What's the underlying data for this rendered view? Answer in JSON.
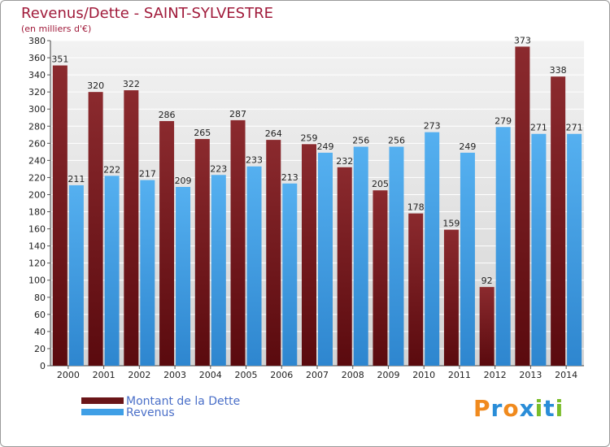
{
  "chart_data": {
    "type": "bar",
    "title": "Revenus/Dette - SAINT-SYLVESTRE",
    "subtitle": "(en milliers d'€)",
    "categories": [
      "2000",
      "2001",
      "2002",
      "2003",
      "2004",
      "2005",
      "2006",
      "2007",
      "2008",
      "2009",
      "2010",
      "2011",
      "2012",
      "2013",
      "2014"
    ],
    "series": [
      {
        "name": "Montant de la Dette",
        "values": [
          351,
          320,
          322,
          286,
          265,
          287,
          264,
          259,
          232,
          205,
          178,
          159,
          92,
          373,
          338
        ],
        "color": "#7a1e22"
      },
      {
        "name": "Revenus",
        "values": [
          211,
          222,
          217,
          209,
          223,
          233,
          213,
          249,
          256,
          256,
          273,
          249,
          279,
          271,
          271
        ],
        "color": "#3f9fe6"
      }
    ],
    "ylim": [
      0,
      380
    ],
    "ytick_step": 20,
    "grid": true,
    "legend": "bottom-left"
  },
  "logo": {
    "letters": [
      "P",
      "r",
      "o",
      "x",
      "i",
      "t",
      "i"
    ],
    "colors": [
      "#f08a1e",
      "#2a8dd8",
      "#f08a1e",
      "#2a8dd8",
      "#7abd2a",
      "#2a8dd8",
      "#7abd2a"
    ]
  }
}
